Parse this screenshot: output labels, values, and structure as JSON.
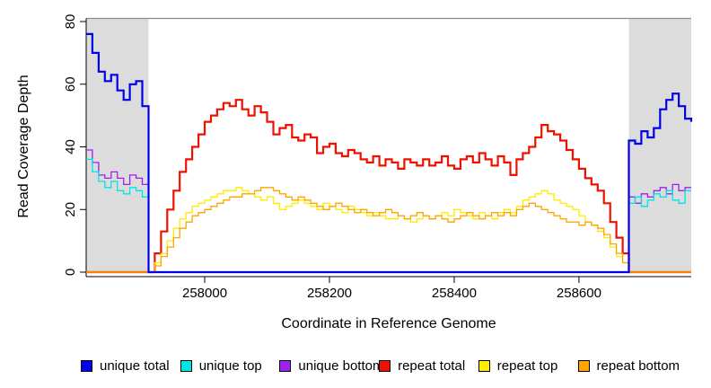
{
  "chart_data": {
    "type": "line",
    "title": "",
    "xlabel": "Coordinate in Reference Genome",
    "ylabel": "Read Coverage Depth",
    "xlim": [
      257810,
      258780
    ],
    "ylim": [
      0,
      81
    ],
    "x_ticks": [
      258000,
      258200,
      258400,
      258600
    ],
    "y_ticks": [
      0,
      20,
      40,
      60,
      80
    ],
    "grid": false,
    "top_rule_y": 81,
    "top_rule_color": "#8C8C8C",
    "axis_color": "#000000",
    "background_color": "#ffffff",
    "shaded_regions": [
      {
        "x0": 257810,
        "x1": 257910,
        "color": "#DCDCDC"
      },
      {
        "x0": 258680,
        "x1": 258780,
        "color": "#DCDCDC"
      }
    ],
    "x_start": 257810,
    "x_step": 10,
    "series": [
      {
        "name": "repeat total",
        "color": "#EE1100",
        "line_width": 2.2,
        "values": [
          0,
          0,
          0,
          0,
          0,
          0,
          0,
          0,
          0,
          0,
          0,
          6,
          13,
          20,
          26,
          32,
          36,
          40,
          44,
          48,
          50,
          52,
          54,
          53,
          55,
          52,
          50,
          53,
          51,
          48,
          44,
          46,
          47,
          43,
          42,
          44,
          43,
          38,
          40,
          41,
          38,
          37,
          39,
          38,
          36,
          35,
          37,
          34,
          36,
          35,
          33,
          36,
          35,
          34,
          36,
          34,
          35,
          37,
          34,
          33,
          36,
          37,
          35,
          38,
          36,
          34,
          37,
          35,
          31,
          36,
          38,
          40,
          43,
          47,
          45,
          44,
          42,
          39,
          36,
          33,
          30,
          28,
          26,
          22,
          16,
          11,
          6,
          0,
          0,
          0,
          0,
          0,
          0,
          0,
          0,
          0,
          0,
          0
        ]
      },
      {
        "name": "repeat top",
        "color": "#FFEC00",
        "line_width": 1.3,
        "values": [
          0,
          0,
          0,
          0,
          0,
          0,
          0,
          0,
          0,
          0,
          0,
          3,
          6,
          10,
          14,
          17,
          19,
          21,
          22,
          23,
          24,
          25,
          26,
          26,
          27,
          26,
          25,
          24,
          23,
          24,
          22,
          20,
          21,
          22,
          23,
          22,
          21,
          20,
          22,
          21,
          20,
          19,
          21,
          20,
          19,
          18,
          19,
          18,
          17,
          17,
          18,
          17,
          16,
          17,
          18,
          17,
          18,
          19,
          18,
          20,
          19,
          18,
          17,
          19,
          18,
          17,
          19,
          20,
          19,
          21,
          23,
          24,
          25,
          26,
          25,
          23,
          22,
          21,
          20,
          18,
          16,
          15,
          13,
          11,
          8,
          5,
          3,
          0,
          0,
          0,
          0,
          0,
          0,
          0,
          0,
          0,
          0,
          0
        ]
      },
      {
        "name": "repeat bottom",
        "color": "#FFA500",
        "line_width": 1.3,
        "values": [
          0,
          0,
          0,
          0,
          0,
          0,
          0,
          0,
          0,
          0,
          0,
          2,
          5,
          8,
          11,
          14,
          16,
          18,
          19,
          20,
          21,
          22,
          23,
          24,
          24,
          25,
          25,
          26,
          27,
          27,
          26,
          25,
          24,
          23,
          24,
          23,
          22,
          21,
          20,
          21,
          22,
          21,
          20,
          19,
          20,
          19,
          18,
          19,
          20,
          19,
          18,
          17,
          18,
          19,
          18,
          17,
          18,
          17,
          16,
          17,
          18,
          19,
          18,
          17,
          18,
          19,
          18,
          19,
          18,
          20,
          21,
          22,
          21,
          20,
          19,
          18,
          17,
          16,
          16,
          15,
          16,
          15,
          14,
          12,
          9,
          6,
          3,
          0,
          0,
          0,
          0,
          0,
          0,
          0,
          0,
          0,
          0,
          0
        ]
      },
      {
        "name": "unique bottom",
        "color": "#A020F0",
        "line_width": 1.3,
        "values": [
          39,
          35,
          31,
          30,
          32,
          30,
          28,
          31,
          30,
          28,
          0,
          0,
          0,
          0,
          0,
          0,
          0,
          0,
          0,
          0,
          0,
          0,
          0,
          0,
          0,
          0,
          0,
          0,
          0,
          0,
          0,
          0,
          0,
          0,
          0,
          0,
          0,
          0,
          0,
          0,
          0,
          0,
          0,
          0,
          0,
          0,
          0,
          0,
          0,
          0,
          0,
          0,
          0,
          0,
          0,
          0,
          0,
          0,
          0,
          0,
          0,
          0,
          0,
          0,
          0,
          0,
          0,
          0,
          0,
          0,
          0,
          0,
          0,
          0,
          0,
          0,
          0,
          0,
          0,
          0,
          0,
          0,
          0,
          0,
          0,
          0,
          0,
          24,
          22,
          25,
          24,
          26,
          27,
          25,
          28,
          26,
          27,
          27
        ]
      },
      {
        "name": "unique top",
        "color": "#00E5E5",
        "line_width": 1.3,
        "values": [
          36,
          32,
          29,
          27,
          29,
          26,
          25,
          27,
          26,
          24,
          0,
          0,
          0,
          0,
          0,
          0,
          0,
          0,
          0,
          0,
          0,
          0,
          0,
          0,
          0,
          0,
          0,
          0,
          0,
          0,
          0,
          0,
          0,
          0,
          0,
          0,
          0,
          0,
          0,
          0,
          0,
          0,
          0,
          0,
          0,
          0,
          0,
          0,
          0,
          0,
          0,
          0,
          0,
          0,
          0,
          0,
          0,
          0,
          0,
          0,
          0,
          0,
          0,
          0,
          0,
          0,
          0,
          0,
          0,
          0,
          0,
          0,
          0,
          0,
          0,
          0,
          0,
          0,
          0,
          0,
          0,
          0,
          0,
          0,
          0,
          0,
          0,
          22,
          24,
          21,
          23,
          25,
          24,
          26,
          23,
          22,
          26,
          26
        ]
      },
      {
        "name": "unique total",
        "color": "#0000EE",
        "line_width": 2.2,
        "values": [
          76,
          70,
          64,
          61,
          63,
          58,
          55,
          60,
          61,
          53,
          0,
          0,
          0,
          0,
          0,
          0,
          0,
          0,
          0,
          0,
          0,
          0,
          0,
          0,
          0,
          0,
          0,
          0,
          0,
          0,
          0,
          0,
          0,
          0,
          0,
          0,
          0,
          0,
          0,
          0,
          0,
          0,
          0,
          0,
          0,
          0,
          0,
          0,
          0,
          0,
          0,
          0,
          0,
          0,
          0,
          0,
          0,
          0,
          0,
          0,
          0,
          0,
          0,
          0,
          0,
          0,
          0,
          0,
          0,
          0,
          0,
          0,
          0,
          0,
          0,
          0,
          0,
          0,
          0,
          0,
          0,
          0,
          0,
          0,
          0,
          0,
          0,
          42,
          41,
          45,
          43,
          46,
          52,
          55,
          57,
          53,
          49,
          48
        ]
      }
    ],
    "legend": {
      "position": "bottom",
      "entries": [
        {
          "label": "unique total",
          "color": "#0000EE"
        },
        {
          "label": "unique top",
          "color": "#00E5E5"
        },
        {
          "label": "unique bottom",
          "color": "#A020F0"
        },
        {
          "label": "repeat total",
          "color": "#EE1100"
        },
        {
          "label": "repeat top",
          "color": "#FFEC00"
        },
        {
          "label": "repeat bottom",
          "color": "#FFA500"
        }
      ]
    }
  }
}
